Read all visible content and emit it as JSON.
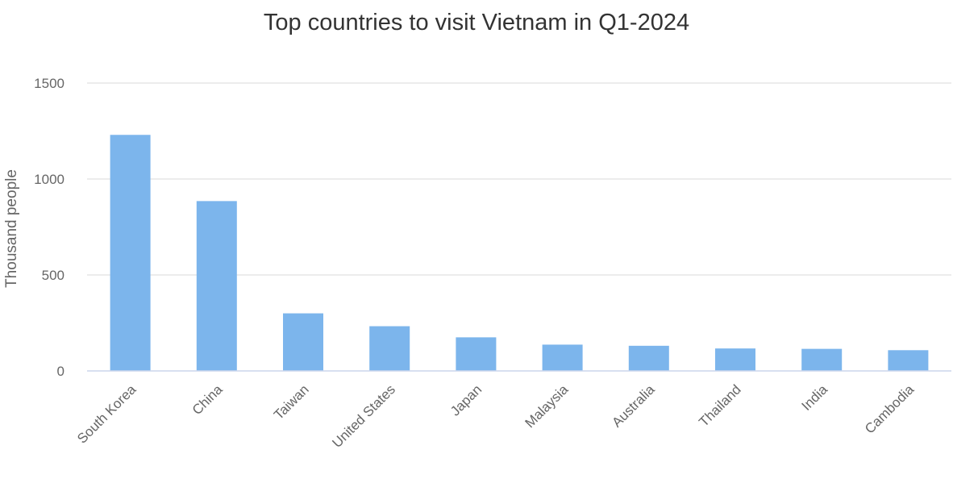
{
  "chart_data": {
    "type": "bar",
    "title": "Top countries to visit Vietnam in Q1-2024",
    "xlabel": "",
    "ylabel": "Thousand people",
    "categories": [
      "South Korea",
      "China",
      "Taiwan",
      "United States",
      "Japan",
      "Malaysia",
      "Australia",
      "Thailand",
      "India",
      "Cambodia"
    ],
    "values": [
      1230,
      885,
      300,
      233,
      175,
      137,
      131,
      117,
      115,
      108
    ],
    "ylim": [
      0,
      1500
    ],
    "yticks": [
      0,
      500,
      1000,
      1500
    ],
    "grid": true,
    "legend": "none",
    "bar_color": "#7cb5ec",
    "grid_color": "#e6e6e6",
    "axis_color": "#ccd6eb"
  }
}
